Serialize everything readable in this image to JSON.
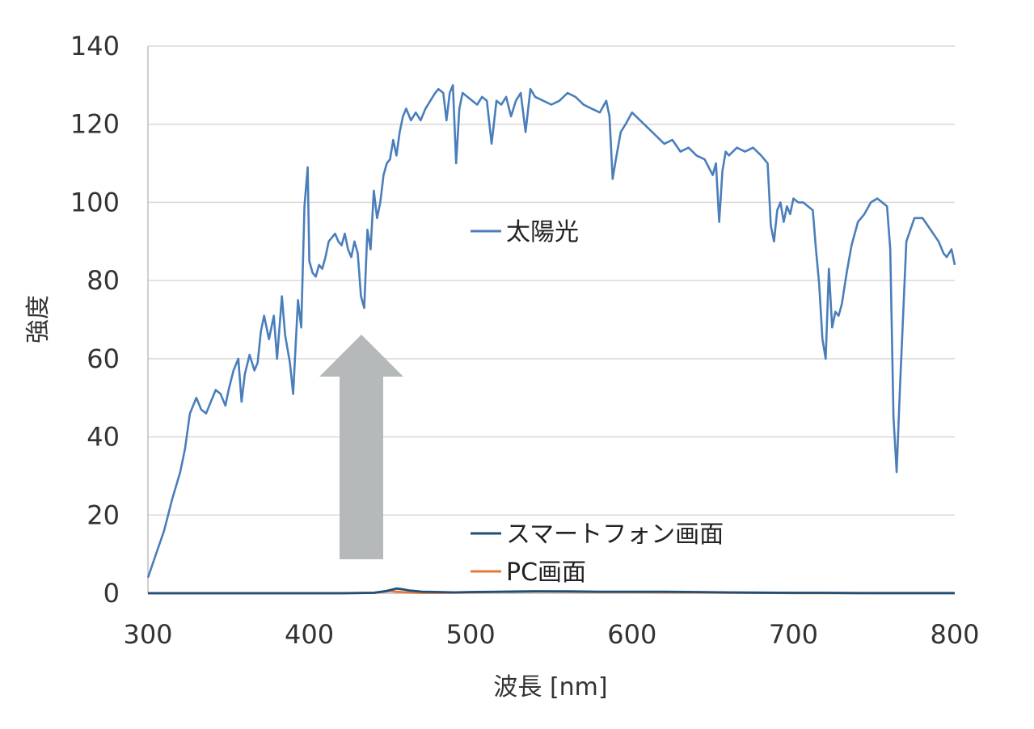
{
  "chart_data": {
    "type": "line",
    "xlabel": "波長 [nm]",
    "ylabel": "強度",
    "xlim": [
      300,
      800
    ],
    "ylim": [
      0,
      140
    ],
    "xticks": [
      300,
      400,
      500,
      600,
      700,
      800
    ],
    "yticks": [
      0,
      20,
      40,
      60,
      80,
      100,
      120,
      140
    ],
    "grid": true,
    "series": [
      {
        "name": "太陽光",
        "color": "#4a7ebb",
        "x": [
          300,
          305,
          310,
          315,
          320,
          323,
          326,
          328,
          330,
          333,
          336,
          339,
          342,
          345,
          348,
          350,
          353,
          356,
          358,
          360,
          363,
          366,
          368,
          370,
          372,
          375,
          378,
          380,
          383,
          385,
          388,
          390,
          393,
          395,
          397,
          399,
          400,
          402,
          404,
          406,
          408,
          410,
          412,
          414,
          416,
          418,
          420,
          422,
          424,
          426,
          428,
          430,
          432,
          434,
          436,
          438,
          440,
          442,
          444,
          446,
          448,
          450,
          452,
          454,
          456,
          458,
          460,
          463,
          466,
          469,
          472,
          475,
          478,
          480,
          483,
          485,
          487,
          489,
          491,
          493,
          495,
          498,
          501,
          504,
          507,
          510,
          513,
          516,
          519,
          522,
          525,
          528,
          531,
          534,
          537,
          540,
          545,
          550,
          555,
          560,
          565,
          570,
          575,
          580,
          584,
          586,
          588,
          590,
          593,
          596,
          600,
          605,
          610,
          615,
          620,
          625,
          630,
          635,
          640,
          645,
          650,
          652,
          654,
          656,
          658,
          660,
          665,
          670,
          675,
          680,
          684,
          686,
          688,
          690,
          692,
          694,
          696,
          698,
          700,
          703,
          706,
          709,
          712,
          714,
          716,
          718,
          720,
          722,
          724,
          726,
          728,
          730,
          733,
          736,
          740,
          744,
          748,
          752,
          755,
          758,
          760,
          762,
          764,
          766,
          770,
          775,
          780,
          785,
          790,
          793,
          795,
          798,
          800
        ],
        "values": [
          4,
          10,
          16,
          24,
          31,
          37,
          46,
          48,
          50,
          47,
          46,
          49,
          52,
          51,
          48,
          52,
          57,
          60,
          49,
          56,
          61,
          57,
          59,
          67,
          71,
          65,
          71,
          60,
          76,
          66,
          59,
          51,
          75,
          68,
          99,
          109,
          85,
          82,
          81,
          84,
          83,
          86,
          90,
          91,
          92,
          90,
          89,
          92,
          88,
          86,
          90,
          87,
          76,
          73,
          93,
          88,
          103,
          96,
          100,
          107,
          110,
          111,
          116,
          112,
          118,
          122,
          124,
          121,
          123,
          121,
          124,
          126,
          128,
          129,
          128,
          121,
          128,
          130,
          110,
          124,
          128,
          127,
          126,
          125,
          127,
          126,
          115,
          126,
          125,
          127,
          122,
          126,
          128,
          118,
          129,
          127,
          126,
          125,
          126,
          128,
          127,
          125,
          124,
          123,
          126,
          122,
          106,
          111,
          118,
          120,
          123,
          121,
          119,
          117,
          115,
          116,
          113,
          114,
          112,
          111,
          107,
          110,
          95,
          108,
          113,
          112,
          114,
          113,
          114,
          112,
          110,
          94,
          90,
          98,
          100,
          95,
          99,
          97,
          101,
          100,
          100,
          99,
          98,
          88,
          79,
          65,
          60,
          83,
          68,
          72,
          71,
          74,
          82,
          89,
          95,
          97,
          100,
          101,
          100,
          99,
          88,
          45,
          31,
          52,
          90,
          96,
          96,
          93,
          90,
          87,
          86,
          88,
          84
        ]
      },
      {
        "name": "スマートフォン画面",
        "color": "#1f4e79",
        "x": [
          300,
          420,
          440,
          448,
          454,
          458,
          462,
          470,
          480,
          490,
          500,
          520,
          540,
          560,
          580,
          600,
          620,
          640,
          660,
          680,
          700,
          720,
          740,
          760,
          780,
          800
        ],
        "values": [
          0,
          0,
          0.1,
          0.6,
          1.2,
          1.0,
          0.7,
          0.4,
          0.3,
          0.2,
          0.3,
          0.4,
          0.5,
          0.5,
          0.4,
          0.4,
          0.4,
          0.3,
          0.2,
          0.15,
          0.1,
          0.1,
          0.05,
          0.05,
          0.05,
          0.05
        ]
      },
      {
        "name": "PC画面",
        "color": "#e07b39",
        "x": [
          300,
          420,
          440,
          446,
          450,
          454,
          460,
          470,
          480,
          500,
          520,
          540,
          560,
          580,
          600,
          620,
          640,
          660,
          680,
          700,
          720,
          760,
          800
        ],
        "values": [
          0,
          0,
          0.1,
          0.4,
          0.6,
          0.4,
          0.2,
          0.1,
          0.1,
          0.2,
          0.4,
          0.5,
          0.4,
          0.3,
          0.3,
          0.25,
          0.2,
          0.15,
          0.1,
          0.05,
          0.05,
          0,
          0
        ]
      }
    ]
  }
}
